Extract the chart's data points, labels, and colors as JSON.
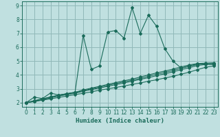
{
  "title": "",
  "xlabel": "Humidex (Indice chaleur)",
  "bg_color": "#c0e0e0",
  "grid_color": "#90b8b8",
  "line_color": "#1a6b5a",
  "xlim": [
    -0.5,
    23.5
  ],
  "ylim": [
    1.7,
    9.3
  ],
  "xticks": [
    0,
    1,
    2,
    3,
    4,
    5,
    6,
    7,
    8,
    9,
    10,
    11,
    12,
    13,
    14,
    15,
    16,
    17,
    18,
    19,
    20,
    21,
    22,
    23
  ],
  "yticks": [
    2,
    3,
    4,
    5,
    6,
    7,
    8,
    9
  ],
  "lines": [
    {
      "x": [
        0,
        1,
        2,
        3,
        4,
        5,
        6,
        7,
        8,
        9,
        10,
        11,
        12,
        13,
        14,
        15,
        16,
        17,
        18,
        19,
        20,
        21,
        22,
        23
      ],
      "y": [
        2.0,
        2.4,
        2.3,
        2.7,
        2.55,
        2.65,
        2.75,
        6.85,
        4.4,
        4.65,
        7.1,
        7.2,
        6.65,
        8.85,
        7.0,
        8.3,
        7.5,
        5.9,
        5.0,
        4.5,
        4.65,
        4.8,
        4.8,
        4.75
      ]
    },
    {
      "x": [
        0,
        1,
        2,
        3,
        4,
        5,
        6,
        7,
        8,
        9,
        10,
        11,
        12,
        13,
        14,
        15,
        16,
        17,
        18,
        19,
        20,
        21,
        22,
        23
      ],
      "y": [
        2.0,
        2.08,
        2.18,
        2.28,
        2.38,
        2.48,
        2.58,
        2.68,
        2.78,
        2.9,
        3.0,
        3.1,
        3.2,
        3.32,
        3.42,
        3.55,
        3.65,
        3.78,
        3.9,
        4.05,
        4.2,
        4.38,
        4.55,
        4.65
      ]
    },
    {
      "x": [
        0,
        1,
        2,
        3,
        4,
        5,
        6,
        7,
        8,
        9,
        10,
        11,
        12,
        13,
        14,
        15,
        16,
        17,
        18,
        19,
        20,
        21,
        22,
        23
      ],
      "y": [
        2.0,
        2.1,
        2.22,
        2.35,
        2.48,
        2.58,
        2.68,
        2.82,
        2.95,
        3.05,
        3.18,
        3.3,
        3.42,
        3.55,
        3.68,
        3.8,
        3.95,
        4.08,
        4.22,
        4.38,
        4.52,
        4.68,
        4.75,
        4.78
      ]
    },
    {
      "x": [
        0,
        1,
        2,
        3,
        4,
        5,
        6,
        7,
        8,
        9,
        10,
        11,
        12,
        13,
        14,
        15,
        16,
        17,
        18,
        19,
        20,
        21,
        22,
        23
      ],
      "y": [
        2.0,
        2.12,
        2.25,
        2.4,
        2.52,
        2.62,
        2.72,
        2.88,
        3.0,
        3.12,
        3.25,
        3.38,
        3.5,
        3.62,
        3.75,
        3.9,
        4.05,
        4.18,
        4.32,
        4.48,
        4.62,
        4.75,
        4.8,
        4.82
      ]
    },
    {
      "x": [
        0,
        1,
        2,
        3,
        4,
        5,
        6,
        7,
        8,
        9,
        10,
        11,
        12,
        13,
        14,
        15,
        16,
        17,
        18,
        19,
        20,
        21,
        22,
        23
      ],
      "y": [
        2.0,
        2.15,
        2.28,
        2.42,
        2.55,
        2.65,
        2.75,
        2.92,
        3.05,
        3.18,
        3.32,
        3.45,
        3.58,
        3.7,
        3.85,
        4.0,
        4.15,
        4.28,
        4.42,
        4.58,
        4.72,
        4.82,
        4.85,
        4.88
      ]
    }
  ]
}
